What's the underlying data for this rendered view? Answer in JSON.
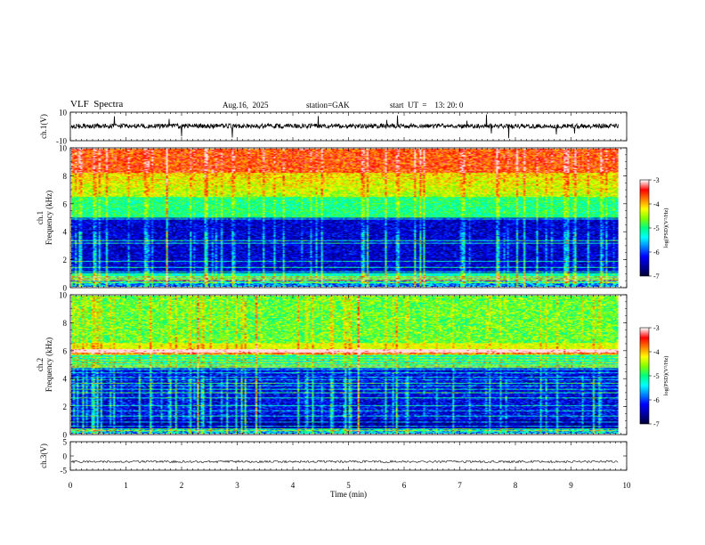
{
  "header": {
    "title": "VLF  Spectra",
    "date": "Aug.16,  2025",
    "station": "station=GAK",
    "start": "start  UT  =    13: 20: 0"
  },
  "chart_data": [
    {
      "type": "line",
      "name": "ch1-waveform",
      "ylabel": "ch.1(V)",
      "ylim": [
        -10,
        10
      ],
      "yticks": [
        "10",
        "-10"
      ],
      "xlim": [
        0,
        10
      ],
      "note": "noisy waveform centered near 0 V with sporadic spikes"
    },
    {
      "type": "heatmap",
      "name": "ch1-spectrogram",
      "ylabel": "ch.1\nFrequency  (kHz)",
      "ylim": [
        0,
        10
      ],
      "yticks": [
        "0",
        "2",
        "4",
        "6",
        "8",
        "10"
      ],
      "xlim": [
        0,
        10
      ],
      "colorbar": {
        "label": "log(PSD)(V²/Hz)",
        "range": [
          -7,
          -3
        ],
        "ticks": [
          "-3",
          "-4",
          "-5",
          "-6",
          "-7"
        ]
      }
    },
    {
      "type": "heatmap",
      "name": "ch2-spectrogram",
      "ylabel": "ch.2\nFrequency  (kHz)",
      "ylim": [
        0,
        10
      ],
      "yticks": [
        "0",
        "2",
        "4",
        "6",
        "8",
        "10"
      ],
      "xlim": [
        0,
        10
      ],
      "colorbar": {
        "label": "log(PSD)(V²/Hz)",
        "range": [
          -7,
          -3
        ],
        "ticks": [
          "-3",
          "-4",
          "-5",
          "-6",
          "-7"
        ]
      }
    },
    {
      "type": "line",
      "name": "ch3-waveform",
      "ylabel": "ch.3(V)",
      "ylim": [
        -5,
        5
      ],
      "yticks": [
        "5",
        "0",
        "-5"
      ],
      "xlim": [
        0,
        10
      ],
      "note": "constant band near -2 V"
    }
  ],
  "xaxis": {
    "label": "Time  (min)",
    "ticks": [
      "0",
      "1",
      "2",
      "3",
      "4",
      "5",
      "6",
      "7",
      "8",
      "9",
      "10"
    ],
    "range": [
      0,
      10
    ],
    "data_end": 9.85
  },
  "colors": {
    "scale": [
      "#000000",
      "#00008b",
      "#0000ff",
      "#0080ff",
      "#00ffff",
      "#00ff80",
      "#80ff00",
      "#ffff00",
      "#ff8000",
      "#ff0000",
      "#ffffff"
    ]
  }
}
